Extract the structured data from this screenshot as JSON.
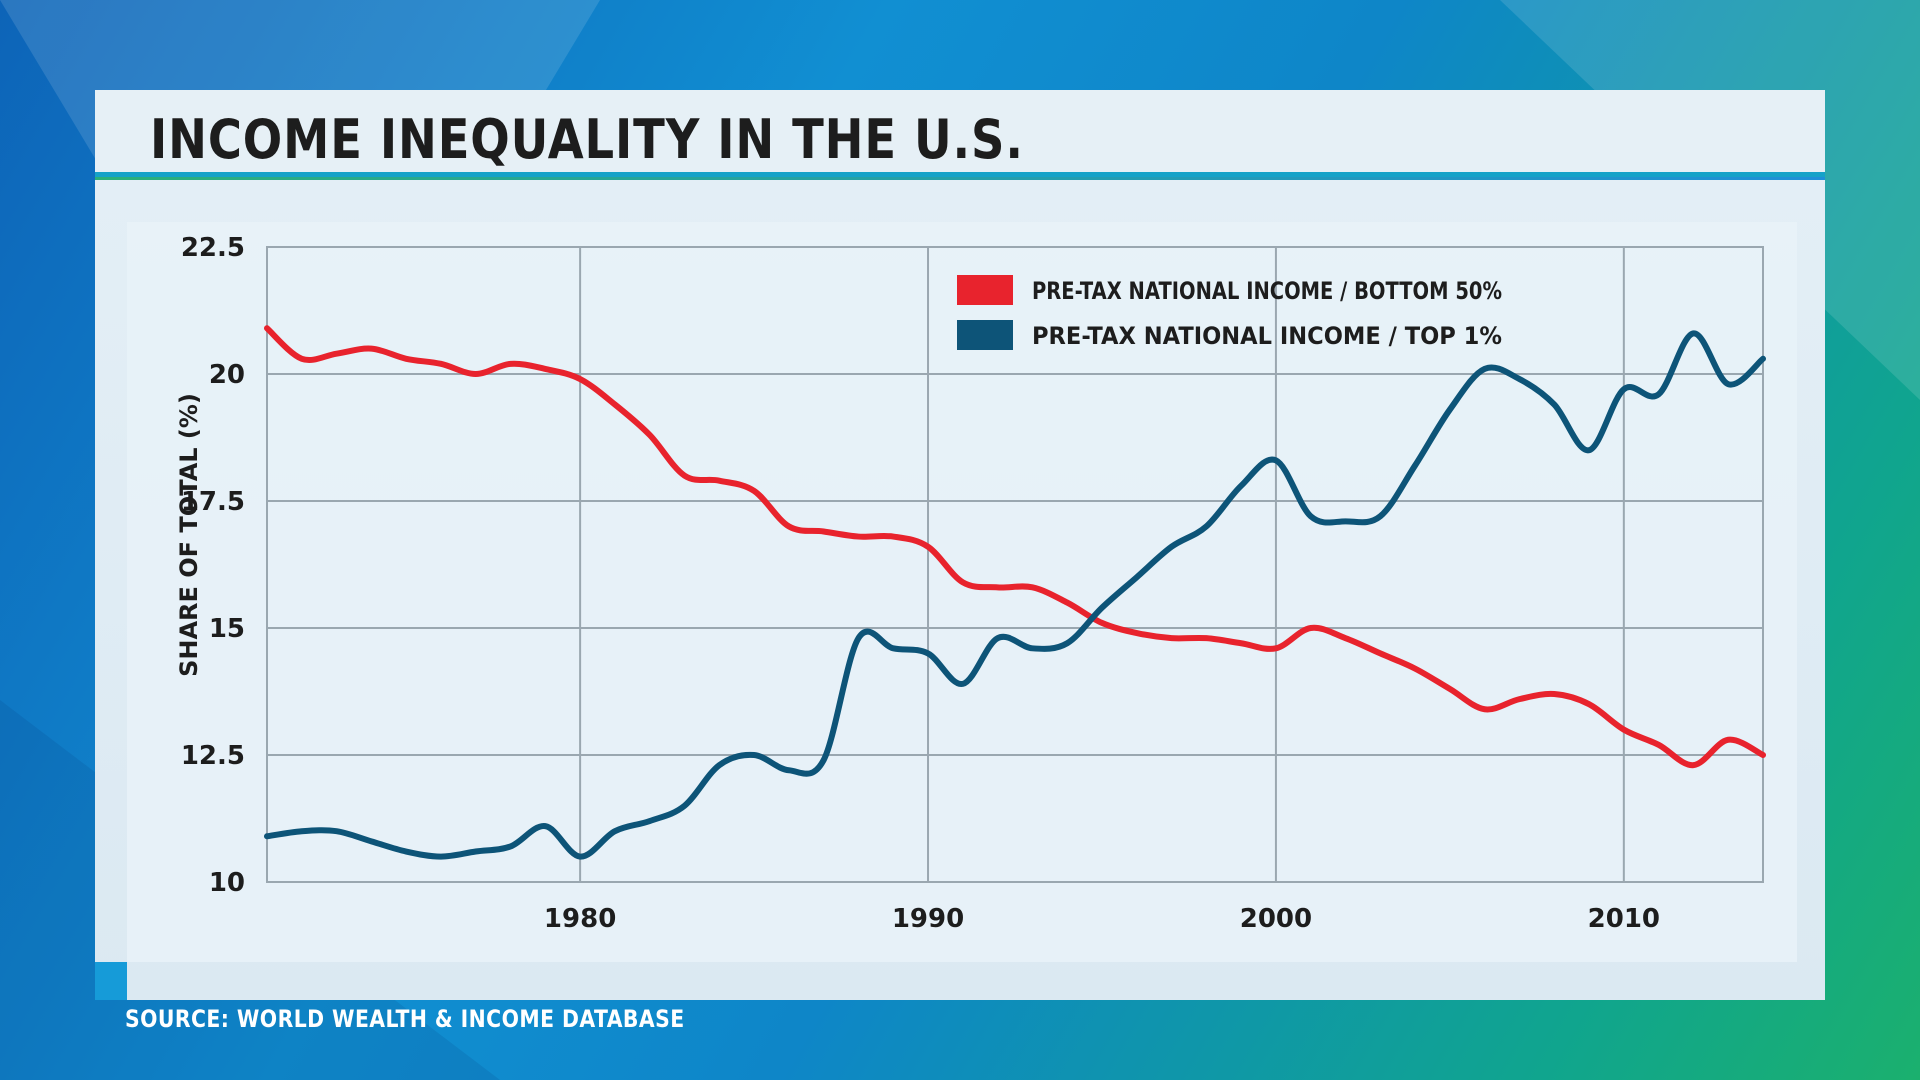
{
  "title": "INCOME INEQUALITY IN THE U.S.",
  "source": "SOURCE: WORLD WEALTH & INCOME DATABASE",
  "chart_data": {
    "type": "line",
    "title": "INCOME INEQUALITY IN THE U.S.",
    "ylabel": "SHARE OF TOTAL (%)",
    "xlabel": "",
    "xlim": [
      1971,
      2014
    ],
    "ylim": [
      10,
      22.5
    ],
    "x_ticks": [
      1980,
      1990,
      2000,
      2010
    ],
    "y_ticks": [
      10,
      12.5,
      15,
      17.5,
      20,
      22.5
    ],
    "grid": true,
    "legend_position": "top-right",
    "series": [
      {
        "name": "PRE-TAX NATIONAL INCOME / BOTTOM 50%",
        "color": "#e8232d",
        "x": [
          1971,
          1972,
          1973,
          1974,
          1975,
          1976,
          1977,
          1978,
          1979,
          1980,
          1981,
          1982,
          1983,
          1984,
          1985,
          1986,
          1987,
          1988,
          1989,
          1990,
          1991,
          1992,
          1993,
          1994,
          1995,
          1996,
          1997,
          1998,
          1999,
          2000,
          2001,
          2002,
          2003,
          2004,
          2005,
          2006,
          2007,
          2008,
          2009,
          2010,
          2011,
          2012,
          2013,
          2014
        ],
        "y": [
          20.9,
          20.3,
          20.4,
          20.5,
          20.3,
          20.2,
          20.0,
          20.2,
          20.1,
          19.9,
          19.4,
          18.8,
          18.0,
          17.9,
          17.7,
          17.0,
          16.9,
          16.8,
          16.8,
          16.6,
          15.9,
          15.8,
          15.8,
          15.5,
          15.1,
          14.9,
          14.8,
          14.8,
          14.7,
          14.6,
          15.0,
          14.8,
          14.5,
          14.2,
          13.8,
          13.4,
          13.6,
          13.7,
          13.5,
          13.0,
          12.7,
          12.3,
          12.8,
          12.5
        ]
      },
      {
        "name": "PRE-TAX NATIONAL INCOME / TOP 1%",
        "color": "#0d5478",
        "x": [
          1971,
          1972,
          1973,
          1974,
          1975,
          1976,
          1977,
          1978,
          1979,
          1980,
          1981,
          1982,
          1983,
          1984,
          1985,
          1986,
          1987,
          1988,
          1989,
          1990,
          1991,
          1992,
          1993,
          1994,
          1995,
          1996,
          1997,
          1998,
          1999,
          2000,
          2001,
          2002,
          2003,
          2004,
          2005,
          2006,
          2007,
          2008,
          2009,
          2010,
          2011,
          2012,
          2013,
          2014
        ],
        "y": [
          10.9,
          11.0,
          11.0,
          10.8,
          10.6,
          10.5,
          10.6,
          10.7,
          11.1,
          10.5,
          11.0,
          11.2,
          11.5,
          12.3,
          12.5,
          12.2,
          12.4,
          14.8,
          14.6,
          14.5,
          13.9,
          14.8,
          14.6,
          14.7,
          15.4,
          16.0,
          16.6,
          17.0,
          17.8,
          18.3,
          17.2,
          17.1,
          17.2,
          18.2,
          19.3,
          20.1,
          19.9,
          19.4,
          18.5,
          19.7,
          19.6,
          20.8,
          19.8,
          20.3
        ]
      }
    ]
  }
}
